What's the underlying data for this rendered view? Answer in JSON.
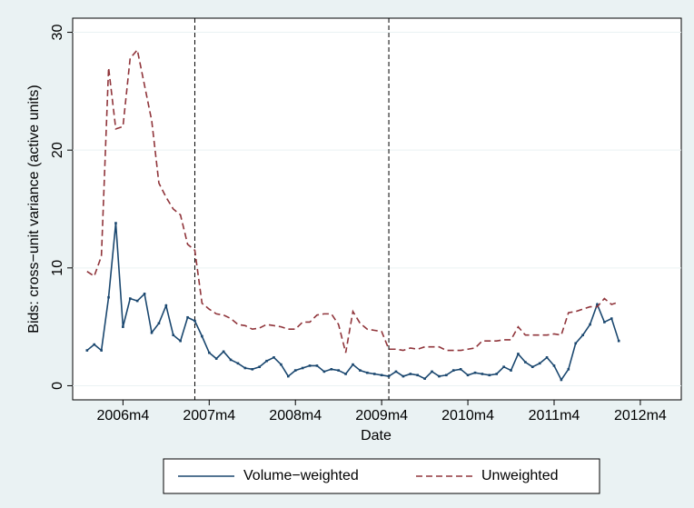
{
  "chart_data": {
    "type": "line",
    "x_label": "Date",
    "y_label": "Bids: cross−unit variance (active units)",
    "x": [
      550,
      551,
      552,
      553,
      554,
      555,
      556,
      557,
      558,
      559,
      560,
      561,
      562,
      563,
      564,
      565,
      566,
      567,
      568,
      569,
      570,
      571,
      572,
      573,
      574,
      575,
      576,
      577,
      578,
      579,
      580,
      581,
      582,
      583,
      584,
      585,
      586,
      587,
      588,
      589,
      590,
      591,
      592,
      593,
      594,
      595,
      596,
      597,
      598,
      599,
      600,
      601,
      602,
      603,
      604,
      605,
      606,
      607,
      608,
      609,
      610,
      611,
      612,
      613,
      614,
      615,
      616,
      617,
      618,
      619,
      620,
      621,
      622,
      623,
      624
    ],
    "series": [
      {
        "name": "Volume−weighted",
        "color": "#1a476f",
        "dash": false,
        "values": [
          3.0,
          3.5,
          3.0,
          7.5,
          13.8,
          5.0,
          7.4,
          7.2,
          7.8,
          4.5,
          5.3,
          6.8,
          4.3,
          3.8,
          5.8,
          5.5,
          4.2,
          2.8,
          2.3,
          2.9,
          2.2,
          1.9,
          1.5,
          1.4,
          1.6,
          2.1,
          2.4,
          1.8,
          0.8,
          1.3,
          1.5,
          1.7,
          1.7,
          1.2,
          1.4,
          1.3,
          1.0,
          1.8,
          1.3,
          1.1,
          1.0,
          0.9,
          0.8,
          1.2,
          0.8,
          1.0,
          0.9,
          0.6,
          1.2,
          0.8,
          0.9,
          1.3,
          1.4,
          0.9,
          1.1,
          1.0,
          0.9,
          1.0,
          1.6,
          1.3,
          2.7,
          2.0,
          1.6,
          1.9,
          2.4,
          1.7,
          0.5,
          1.4,
          3.6,
          4.3,
          5.2,
          6.9,
          5.4,
          5.7,
          3.8
        ]
      },
      {
        "name": "Unweighted",
        "color": "#90353b",
        "dash": true,
        "values": [
          9.7,
          9.3,
          11,
          27,
          21.8,
          22,
          27.8,
          28.5,
          25.5,
          22.5,
          17.2,
          16,
          15,
          14.5,
          12,
          11.5,
          7,
          6.5,
          6.1,
          6,
          5.7,
          5.2,
          5.1,
          4.8,
          4.9,
          5.2,
          5.1,
          5.0,
          4.8,
          4.8,
          5.4,
          5.4,
          6.0,
          6.1,
          6.1,
          5.2,
          2.8,
          6.3,
          5.3,
          4.8,
          4.7,
          4.6,
          3.1,
          3.1,
          3.0,
          3.2,
          3.1,
          3.3,
          3.3,
          3.3,
          3.0,
          3.0,
          3.0,
          3.1,
          3.2,
          3.8,
          3.8,
          3.8,
          3.9,
          3.9,
          5.0,
          4.3,
          4.3,
          4.3,
          4.3,
          4.4,
          4.3,
          6.2,
          6.3,
          6.5,
          6.7,
          6.7,
          7.4,
          6.9,
          7.1
        ]
      }
    ],
    "xlim": [
      548,
      632.7
    ],
    "xticks": [
      {
        "value": 555,
        "label": "2006m4"
      },
      {
        "value": 567,
        "label": "2007m4"
      },
      {
        "value": 579,
        "label": "2008m4"
      },
      {
        "value": 591,
        "label": "2009m4"
      },
      {
        "value": 603,
        "label": "2010m4"
      },
      {
        "value": 615,
        "label": "2011m4"
      },
      {
        "value": 627,
        "label": "2012m4"
      }
    ],
    "ylim": [
      -1.2,
      31.2
    ],
    "yticks": [
      0,
      10,
      20,
      30
    ],
    "vlines": [
      565,
      592
    ],
    "grid": true,
    "legend": "bottom"
  }
}
